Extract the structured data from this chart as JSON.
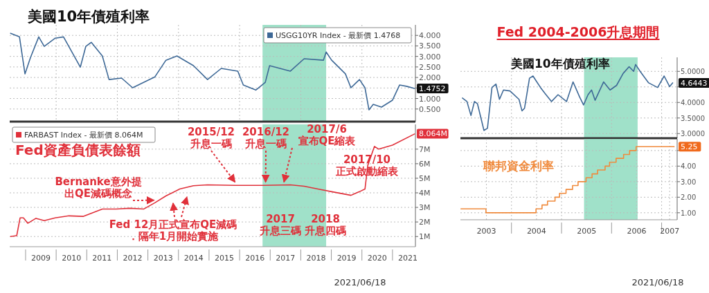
{
  "chart_data": [
    {
      "type": "line",
      "title": "美國10年債殖利率",
      "xlim": [
        2008.48,
        2021.75
      ],
      "ylim": [
        -0.1,
        4.5
      ],
      "xticks": [
        {
          "value": 2010,
          "label": null
        },
        {
          "value": 2012,
          "label": null
        },
        {
          "value": 2014,
          "label": null
        },
        {
          "value": 2016,
          "label": null
        },
        {
          "value": 2018,
          "label": null
        },
        {
          "value": 2020,
          "label": null
        }
      ],
      "yticks": [
        {
          "value": 0.5,
          "label": "0.500"
        },
        {
          "value": 1,
          "label": "1.000"
        },
        {
          "value": 1.5,
          "label": null
        },
        {
          "value": 2,
          "label": "2.000"
        },
        {
          "value": 2.5,
          "label": "2.500"
        },
        {
          "value": 3,
          "label": "3.000"
        },
        {
          "value": 3.5,
          "label": "3.500"
        },
        {
          "value": 4,
          "label": "4.000"
        }
      ],
      "tick_labels": "y",
      "grid": true,
      "legend": "top right",
      "bands": [
        {
          "axis": "x",
          "from": 2016.75,
          "to": 2018.83,
          "color": "#8fdcbf"
        }
      ],
      "series": [
        {
          "name": "USGG10YR Index - 最新價 1.4768",
          "color": "#3d6896",
          "x": [
            2008.51,
            2008.8,
            2008.98,
            2009.16,
            2009.43,
            2009.61,
            2009.97,
            2010.24,
            2010.79,
            2010.97,
            2011.15,
            2011.51,
            2011.73,
            2012.14,
            2012.5,
            2013.23,
            2013.59,
            2013.95,
            2014.49,
            2014.95,
            2015.4,
            2015.94,
            2016.12,
            2016.53,
            2016.84,
            2016.98,
            2017.66,
            2018.11,
            2018.74,
            2018.83,
            2019.01,
            2019.46,
            2019.64,
            2019.92,
            2020.1,
            2020.23,
            2020.37,
            2020.64,
            2021.0,
            2021.23,
            2021.46,
            2021.72
          ],
          "values": [
            4.1,
            3.93,
            2.17,
            2.95,
            3.93,
            3.48,
            3.87,
            3.93,
            2.49,
            3.48,
            3.67,
            3.02,
            1.9,
            1.97,
            1.51,
            2.03,
            2.82,
            3.02,
            2.56,
            1.9,
            2.43,
            2.3,
            1.64,
            1.4,
            1.77,
            2.56,
            2.3,
            2.89,
            2.82,
            3.21,
            2.82,
            2.17,
            1.51,
            1.9,
            1.51,
            0.46,
            0.72,
            0.59,
            0.92,
            1.64,
            1.58,
            1.48
          ]
        }
      ],
      "annotations": [
        {
          "text": "1.4752",
          "x": 2021.72,
          "y": 1.4752
        }
      ]
    },
    {
      "type": "line",
      "title": "Fed資產負債表餘額",
      "xlim": [
        2008.48,
        2021.75
      ],
      "ylim": [
        0.3,
        8.7
      ],
      "xticks": [
        {
          "value": 2009,
          "label": null
        },
        {
          "value": 2009.5,
          "label": "2009"
        },
        {
          "value": 2010,
          "label": null
        },
        {
          "value": 2010.5,
          "label": "2010"
        },
        {
          "value": 2011,
          "label": null
        },
        {
          "value": 2011.5,
          "label": "2011"
        },
        {
          "value": 2012,
          "label": null
        },
        {
          "value": 2012.5,
          "label": "2012"
        },
        {
          "value": 2013,
          "label": null
        },
        {
          "value": 2013.5,
          "label": "2013"
        },
        {
          "value": 2014,
          "label": null
        },
        {
          "value": 2014.5,
          "label": "2014"
        },
        {
          "value": 2015,
          "label": null
        },
        {
          "value": 2015.5,
          "label": "2015"
        },
        {
          "value": 2016,
          "label": null
        },
        {
          "value": 2016.5,
          "label": "2016"
        },
        {
          "value": 2017,
          "label": null
        },
        {
          "value": 2017.5,
          "label": "2017"
        },
        {
          "value": 2018,
          "label": null
        },
        {
          "value": 2018.5,
          "label": "2018"
        },
        {
          "value": 2019,
          "label": null
        },
        {
          "value": 2019.5,
          "label": "2019"
        },
        {
          "value": 2020,
          "label": null
        },
        {
          "value": 2020.5,
          "label": "2020"
        },
        {
          "value": 2021,
          "label": null
        },
        {
          "value": 2021.5,
          "label": "2021"
        }
      ],
      "yticks": [
        {
          "value": 1,
          "label": "1M"
        },
        {
          "value": 2,
          "label": "2M"
        },
        {
          "value": 3,
          "label": "3M"
        },
        {
          "value": 4,
          "label": "4M"
        },
        {
          "value": 5,
          "label": "5M"
        },
        {
          "value": 6,
          "label": "6M"
        },
        {
          "value": 7,
          "label": "7M"
        }
      ],
      "grid": "y",
      "legend": "top left",
      "bands": [
        {
          "axis": "x",
          "from": 2016.75,
          "to": 2018.83,
          "color": "#8fdcbf"
        }
      ],
      "series": [
        {
          "name": "FARBAST Index - 最新價 8.064M",
          "color": "#e0303a",
          "x": [
            2008.51,
            2008.71,
            2008.82,
            2008.93,
            2009.07,
            2009.34,
            2009.61,
            2009.97,
            2010.42,
            2010.88,
            2011.51,
            2011.96,
            2012.41,
            2012.87,
            2013.23,
            2013.59,
            2014.04,
            2014.49,
            2014.95,
            2015.85,
            2016.75,
            2017.66,
            2018.11,
            2018.56,
            2019.01,
            2019.64,
            2019.92,
            2020.1,
            2020.19,
            2020.41,
            2020.55,
            2021.0,
            2021.72
          ],
          "values": [
            1.0,
            1.06,
            2.28,
            2.28,
            1.91,
            2.25,
            2.09,
            2.28,
            2.42,
            2.38,
            2.89,
            2.89,
            2.94,
            2.89,
            3.32,
            3.79,
            4.26,
            4.49,
            4.55,
            4.51,
            4.51,
            4.55,
            4.45,
            4.26,
            4.08,
            3.83,
            4.08,
            4.26,
            5.87,
            7.19,
            7.0,
            7.28,
            8.04
          ]
        }
      ],
      "annotations": [
        {
          "text": "2015/12\n升息一碼",
          "x": 2015.85,
          "y": 4.55
        },
        {
          "text": "2016/12\n升息一碼",
          "x": 2016.85,
          "y": 4.55
        },
        {
          "text": "2017/6\n宣布QE縮表",
          "x": 2017.45,
          "y": 4.55
        },
        "2017/10\n正式啟動縮表",
        {
          "text": "Bernanke意外提出QE減碼概念",
          "x": 2013.2,
          "y": 3.3
        },
        "Fed 12月正式宣布QE減碼．隔年1月開始實施",
        "2017\n升息三碼",
        "2018\n升息四碼",
        {
          "text": "8.064M",
          "x": 2021.72,
          "y": 8.064
        },
        "2021/06/18"
      ]
    },
    {
      "type": "line",
      "title": "Fed 2004-2006升息期間",
      "subtitle": "美國10年債殖利率",
      "xlim": [
        2002.98,
        2007.31
      ],
      "ylim": [
        2.85,
        5.45
      ],
      "xticks": [
        {
          "value": 2004,
          "label": null
        },
        {
          "value": 2005,
          "label": null
        },
        {
          "value": 2006,
          "label": null
        },
        {
          "value": 2007,
          "label": null
        }
      ],
      "yticks": [
        {
          "value": 3,
          "label": "3.0000"
        },
        {
          "value": 3.5,
          "label": "3.5000"
        },
        {
          "value": 4,
          "label": "4.0000"
        },
        {
          "value": 4.5,
          "label": null
        },
        {
          "value": 5,
          "label": "5.0000"
        }
      ],
      "tick_labels": "y",
      "grid": true,
      "bands": [
        {
          "axis": "x",
          "from": 2005.45,
          "to": 2006.52,
          "color": "#8fdcbf"
        }
      ],
      "series": [
        {
          "color": "#3d6896",
          "x": [
            2003.02,
            2003.11,
            2003.19,
            2003.26,
            2003.32,
            2003.45,
            2003.52,
            2003.61,
            2003.69,
            2003.76,
            2003.84,
            2003.97,
            2004.15,
            2004.21,
            2004.26,
            2004.36,
            2004.43,
            2004.49,
            2004.58,
            2004.67,
            2004.8,
            2004.93,
            2005.1,
            2005.23,
            2005.36,
            2005.44,
            2005.53,
            2005.6,
            2005.67,
            2005.84,
            2005.97,
            2006.1,
            2006.23,
            2006.35,
            2006.44,
            2006.48,
            2006.57,
            2006.74,
            2006.92,
            2007.05,
            2007.16,
            2007.22
          ],
          "values": [
            4.14,
            4.03,
            3.58,
            4.03,
            3.96,
            3.1,
            3.17,
            4.48,
            4.59,
            4.1,
            4.4,
            4.37,
            4.1,
            3.73,
            3.81,
            4.78,
            4.85,
            4.7,
            4.48,
            4.29,
            4.03,
            4.25,
            4.03,
            4.66,
            4.18,
            3.92,
            4.25,
            4.4,
            4.07,
            4.66,
            4.4,
            4.55,
            4.93,
            5.15,
            5.0,
            5.22,
            5.0,
            4.63,
            4.48,
            4.85,
            4.51,
            4.63
          ]
        }
      ],
      "annotations": [
        {
          "text": "4.6443",
          "x": 2007.22,
          "y": 4.63
        }
      ]
    },
    {
      "type": "step",
      "title": "聯邦資金利率",
      "xlim": [
        2002.98,
        2007.31
      ],
      "ylim": [
        0.55,
        5.75
      ],
      "xticks": [
        {
          "value": 2003.5,
          "label": "2003"
        },
        {
          "value": 2004,
          "label": null
        },
        {
          "value": 2004.5,
          "label": "2004"
        },
        {
          "value": 2005,
          "label": null
        },
        {
          "value": 2005.5,
          "label": "2005"
        },
        {
          "value": 2006,
          "label": null
        },
        {
          "value": 2006.5,
          "label": "2006"
        },
        {
          "value": 2007,
          "label": null
        },
        {
          "value": 2007.16,
          "label": "2007"
        }
      ],
      "yticks": [
        {
          "value": 1,
          "label": "1.00"
        },
        {
          "value": 2,
          "label": "2.00"
        },
        {
          "value": 3,
          "label": "3.00"
        },
        {
          "value": 4,
          "label": "4.00"
        },
        {
          "value": 5,
          "label": null
        }
      ],
      "grid": true,
      "bands": [
        {
          "axis": "x",
          "from": 2005.45,
          "to": 2006.52,
          "color": "#8fdcbf"
        }
      ],
      "series": [
        {
          "color": "#f08a3c",
          "x": [
            2002.99,
            2003.49,
            2004.49,
            2004.61,
            2004.72,
            2004.87,
            2004.96,
            2005.09,
            2005.22,
            2005.33,
            2005.49,
            2005.61,
            2005.72,
            2005.87,
            2005.96,
            2006.09,
            2006.24,
            2006.36,
            2006.49,
            2007.25
          ],
          "values": [
            1.25,
            1.0,
            1.25,
            1.5,
            1.75,
            2.0,
            2.25,
            2.5,
            2.75,
            3.0,
            3.25,
            3.5,
            3.75,
            4.0,
            4.25,
            4.5,
            4.75,
            5.0,
            5.25,
            5.25
          ]
        }
      ],
      "annotations": [
        {
          "text": "5.25",
          "x": 2007.25,
          "y": 5.25
        },
        "2021/06/18"
      ]
    }
  ]
}
